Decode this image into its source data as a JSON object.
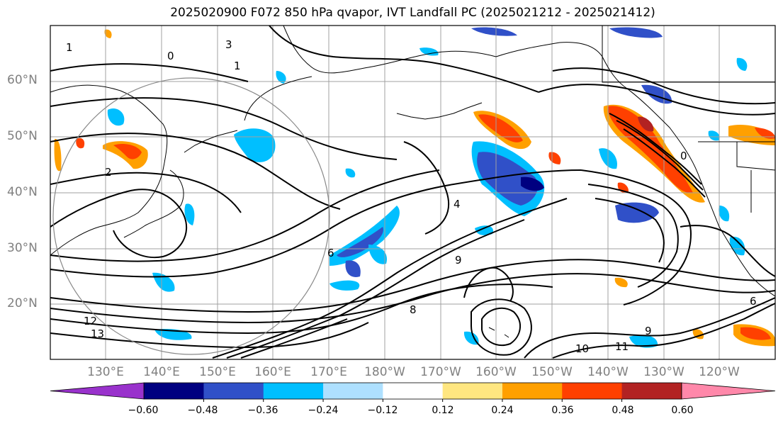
{
  "title": "2025020900 F072 850 hPa qvapor, IVT Landfall PC (2025021212 - 2025021412)",
  "lat_labels": [
    "60°N",
    "50°N",
    "40°N",
    "30°N",
    "20°N"
  ],
  "lon_labels": [
    "130°E",
    "140°E",
    "150°E",
    "160°E",
    "170°E",
    "180°W",
    "170°W",
    "160°W",
    "150°W",
    "140°W",
    "130°W",
    "120°W"
  ],
  "colorbar": {
    "tick_labels": [
      "−0.60",
      "−0.48",
      "−0.36",
      "−0.24",
      "−0.12",
      "0.12",
      "0.24",
      "0.36",
      "0.48",
      "0.60"
    ],
    "colors": [
      "#9932cc",
      "#000080",
      "#3050c8",
      "#00bfff",
      "#aee0ff",
      "#ffffff",
      "#ffe680",
      "#ffa000",
      "#ff4000",
      "#b22222",
      "#ff88aa"
    ]
  },
  "contour_labels": [
    "1",
    "0",
    "3",
    "1",
    "0",
    "4",
    "6",
    "8",
    "9",
    "10",
    "11",
    "12",
    "13",
    "9",
    "6",
    "2"
  ],
  "colors": {
    "frame": "#000000",
    "grid": "#a0a0a0",
    "axis_text": "#808080"
  }
}
